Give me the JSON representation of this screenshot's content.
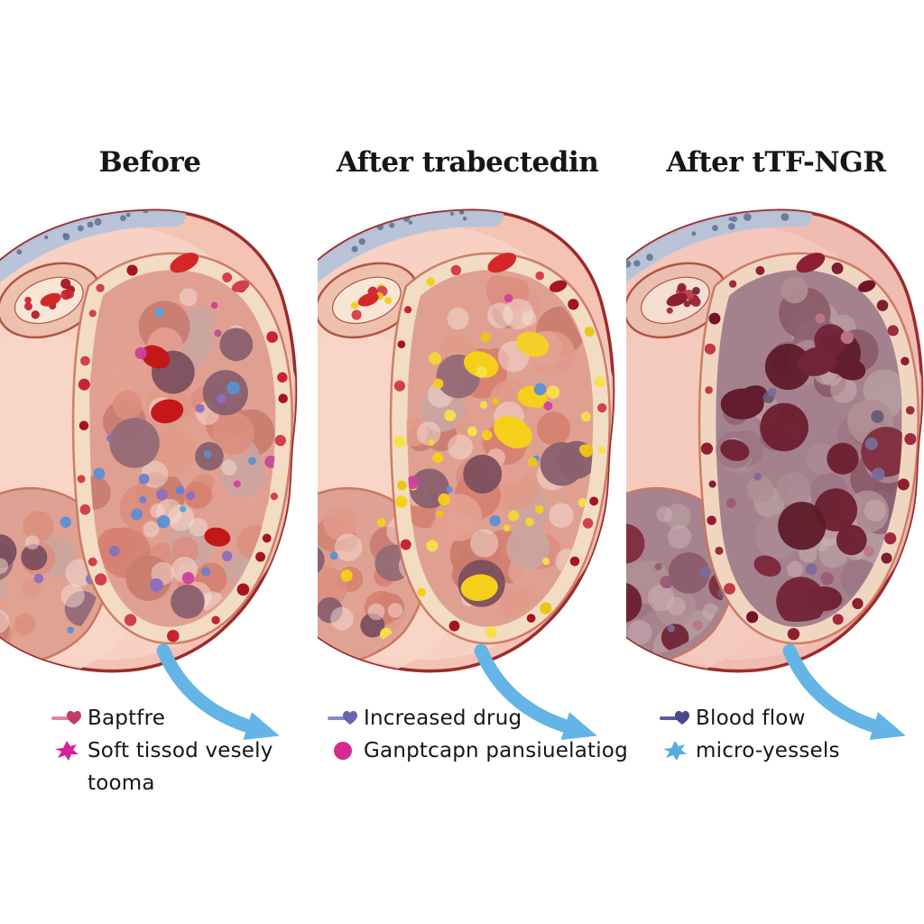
{
  "panels": [
    {
      "id": "before",
      "title": "Before",
      "art": {
        "base": "#f4c3b4",
        "wash": "#f8d5c8",
        "outline": "#9b2c2c",
        "fascia": "#b5c3d9",
        "fascia_dot": "#5f6f92",
        "vessel_wall": "#eec0ae",
        "vessel_lumen": "#f7e6d6",
        "vessel_edge": "#b25543",
        "lobe_base": "#dfa092",
        "band": "#f2dcc3",
        "band_edge": "#c9755f",
        "band_cells": [
          "#c92330",
          "#a5141f",
          "#d4404a",
          "#b81c28"
        ],
        "cells": [
          "#dc8e7e",
          "#d57f70",
          "#e3a090",
          "#c97b6e",
          "#cba5a0",
          "#e09a8a"
        ],
        "dark_cells": [
          "#8a5f6e",
          "#7c4f5e",
          "#936a77"
        ],
        "gap": "#f6e0d8",
        "dots": [
          "#5b8fd4",
          "#cf3fa0",
          "#8a6fc0",
          "#4aa8d8",
          "#c24b9e",
          "#6a7fd0"
        ],
        "dot_count": 26,
        "dark_count": 6,
        "big_blobs": [
          "#d32020",
          "#c41818"
        ],
        "big_count": 3,
        "clot": "#d42828",
        "arrow": "#64b5e6"
      }
    },
    {
      "id": "after-trabectedin",
      "title": "After trabectedin",
      "art": {
        "base": "#f4c3b4",
        "wash": "#f8d5c8",
        "outline": "#9b2c2c",
        "fascia": "#b5c3d9",
        "fascia_dot": "#5f6f92",
        "vessel_wall": "#eec0ae",
        "vessel_lumen": "#f7e6d6",
        "vessel_edge": "#b25543",
        "lobe_base": "#dfa092",
        "band": "#f2dcc3",
        "band_edge": "#c9755f",
        "band_cells": [
          "#c92330",
          "#f5cf1a",
          "#a5141f",
          "#f8e04a",
          "#d4404a",
          "#edc416"
        ],
        "cells": [
          "#dc8e7e",
          "#d57f70",
          "#e3a090",
          "#c97b6e",
          "#cba5a0",
          "#e09a8a"
        ],
        "dark_cells": [
          "#8a5f6e",
          "#7c4f5e",
          "#936a77"
        ],
        "gap": "#f6e0d8",
        "dots": [
          "#f5cf1a",
          "#f8e04a",
          "#edc416",
          "#cf3fa0",
          "#5b8fd4",
          "#f2d63a",
          "#f5cf1a"
        ],
        "dot_count": 34,
        "dark_count": 6,
        "big_blobs": [
          "#f5cf1a",
          "#d32020",
          "#f2d028"
        ],
        "big_count": 5,
        "clot": "#d42828",
        "arrow": "#64b5e6"
      }
    },
    {
      "id": "after-ttf-ngr",
      "title": "After tTF-NGR",
      "art": {
        "base": "#f0bbb0",
        "wash": "#f4cabf",
        "outline": "#9b2c2c",
        "fascia": "#b5c3d9",
        "fascia_dot": "#5f6f92",
        "vessel_wall": "#eabfb0",
        "vessel_lumen": "#f3ded1",
        "vessel_edge": "#b25543",
        "lobe_base": "#a5818e",
        "band": "#f0d6c0",
        "band_edge": "#c9755f",
        "band_cells": [
          "#8e1f33",
          "#731426",
          "#a02a3c",
          "#c23a46",
          "#7c1f30"
        ],
        "cells": [
          "#9c7585",
          "#8f6374",
          "#ab8a95",
          "#b08f93",
          "#8a5a68",
          "#b59a9e"
        ],
        "dark_cells": [
          "#722338",
          "#6b1f30",
          "#7e2c3d",
          "#5e1b2a"
        ],
        "gap": "#cfb3b8",
        "dots": [
          "#7a6a9a",
          "#9a5a74",
          "#c0768a",
          "#6a5a7a"
        ],
        "dot_count": 12,
        "dark_count": 10,
        "big_blobs": [
          "#722338",
          "#641d2e",
          "#7e2c3d"
        ],
        "big_count": 7,
        "clot": "#8e1f33",
        "arrow": "#64b5e6"
      }
    }
  ],
  "legends": [
    {
      "items": [
        {
          "icon": "pink-pin-icon",
          "label": "Baptfre"
        },
        {
          "icon": "magenta-splat-icon",
          "label": "Soft tissod vesely",
          "label2": "tooma"
        }
      ]
    },
    {
      "items": [
        {
          "icon": "purple-pin-icon",
          "label": "Increased drug"
        },
        {
          "icon": "magenta-dot-icon",
          "label": "Ganptcapn pansiuelatiog"
        }
      ]
    },
    {
      "items": [
        {
          "icon": "indigo-pin-icon",
          "label": "Blood flow"
        },
        {
          "icon": "blue-splat-icon",
          "label": "micro-yessels"
        }
      ]
    }
  ],
  "icons": {
    "pink-pin-icon": {
      "type": "pin",
      "color": "#e0879a",
      "accent": "#c2396b"
    },
    "magenta-splat-icon": {
      "type": "splat",
      "color": "#d4219b"
    },
    "purple-pin-icon": {
      "type": "pin",
      "color": "#8a8ac6",
      "accent": "#6a63ae"
    },
    "magenta-dot-icon": {
      "type": "dot",
      "color": "#d42a92"
    },
    "indigo-pin-icon": {
      "type": "pin",
      "color": "#5a5aa0",
      "accent": "#4a4a8e"
    },
    "blue-splat-icon": {
      "type": "splat",
      "color": "#58ace0"
    }
  }
}
